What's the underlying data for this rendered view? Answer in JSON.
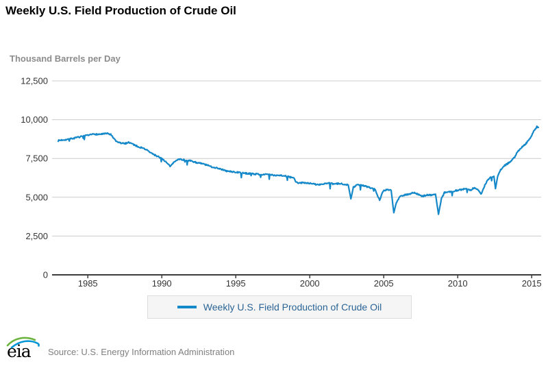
{
  "title": "Weekly U.S. Field Production of Crude Oil",
  "y_axis": {
    "label": "Thousand Barrels per Day",
    "ticks": [
      {
        "value": 12500,
        "label": "12,500"
      },
      {
        "value": 10000,
        "label": "10,000"
      },
      {
        "value": 7500,
        "label": "7,500"
      },
      {
        "value": 5000,
        "label": "5,000"
      },
      {
        "value": 2500,
        "label": "2,500"
      },
      {
        "value": 0,
        "label": "0"
      }
    ]
  },
  "x_axis": {
    "ticks": [
      {
        "value": 1985,
        "label": "1985"
      },
      {
        "value": 1990,
        "label": "1990"
      },
      {
        "value": 1995,
        "label": "1995"
      },
      {
        "value": 2000,
        "label": "2000"
      },
      {
        "value": 2005,
        "label": "2005"
      },
      {
        "value": 2010,
        "label": "2010"
      },
      {
        "value": 2015,
        "label": "2015"
      }
    ]
  },
  "legend": {
    "label": "Weekly U.S. Field Production of Crude Oil"
  },
  "footer": {
    "logo_text": "eia",
    "source": "Source: U.S. Energy Information Administration"
  },
  "colors": {
    "line": "#1488c9",
    "grid": "#cccccc",
    "axis": "#3c3c3c",
    "tick_text": "#333333",
    "legend_text": "#2a6496",
    "logo_green": "#6cb33f",
    "logo_blue": "#0096d6"
  },
  "chart_data": {
    "type": "line",
    "title": "Weekly U.S. Field Production of Crude Oil",
    "ylabel": "Thousand Barrels per Day",
    "xlabel": "",
    "xlim": [
      1982.8,
      2015.8
    ],
    "ylim": [
      0,
      12500
    ],
    "grid": "horizontal",
    "legend_position": "bottom",
    "series": [
      {
        "name": "Weekly U.S. Field Production of Crude Oil",
        "units": "thousand barrels per day",
        "points": [
          [
            1983.0,
            8650
          ],
          [
            1983.3,
            8700
          ],
          [
            1983.6,
            8720
          ],
          [
            1983.9,
            8780
          ],
          [
            1984.2,
            8830
          ],
          [
            1984.5,
            8900
          ],
          [
            1984.8,
            8950
          ],
          [
            1985.1,
            9000
          ],
          [
            1985.4,
            9080
          ],
          [
            1985.7,
            9050
          ],
          [
            1986.0,
            9080
          ],
          [
            1986.3,
            9100
          ],
          [
            1986.55,
            9050
          ],
          [
            1986.7,
            8850
          ],
          [
            1986.9,
            8600
          ],
          [
            1987.2,
            8500
          ],
          [
            1987.5,
            8450
          ],
          [
            1987.75,
            8550
          ],
          [
            1988.0,
            8450
          ],
          [
            1988.3,
            8300
          ],
          [
            1988.6,
            8200
          ],
          [
            1988.9,
            8100
          ],
          [
            1989.2,
            7900
          ],
          [
            1989.45,
            7750
          ],
          [
            1989.7,
            7650
          ],
          [
            1990.0,
            7500
          ],
          [
            1990.2,
            7350
          ],
          [
            1990.45,
            7100
          ],
          [
            1990.6,
            6980
          ],
          [
            1990.8,
            7250
          ],
          [
            1991.0,
            7420
          ],
          [
            1991.3,
            7450
          ],
          [
            1991.6,
            7380
          ],
          [
            1991.9,
            7350
          ],
          [
            1992.2,
            7280
          ],
          [
            1992.5,
            7200
          ],
          [
            1992.8,
            7150
          ],
          [
            1993.1,
            7050
          ],
          [
            1993.4,
            6950
          ],
          [
            1993.7,
            6900
          ],
          [
            1994.0,
            6820
          ],
          [
            1994.3,
            6700
          ],
          [
            1994.6,
            6660
          ],
          [
            1995.0,
            6620
          ],
          [
            1995.3,
            6580
          ],
          [
            1995.6,
            6550
          ],
          [
            1996.0,
            6520
          ],
          [
            1996.3,
            6500
          ],
          [
            1996.6,
            6480
          ],
          [
            1997.0,
            6470
          ],
          [
            1997.3,
            6450
          ],
          [
            1997.6,
            6420
          ],
          [
            1998.0,
            6420
          ],
          [
            1998.3,
            6380
          ],
          [
            1998.6,
            6300
          ],
          [
            1998.9,
            6250
          ],
          [
            1999.05,
            6000
          ],
          [
            1999.3,
            5900
          ],
          [
            1999.6,
            5950
          ],
          [
            2000.0,
            5900
          ],
          [
            2000.3,
            5850
          ],
          [
            2000.6,
            5800
          ],
          [
            2001.0,
            5880
          ],
          [
            2001.3,
            5900
          ],
          [
            2001.6,
            5850
          ],
          [
            2002.0,
            5880
          ],
          [
            2002.3,
            5850
          ],
          [
            2002.6,
            5800
          ],
          [
            2002.78,
            4900
          ],
          [
            2002.95,
            5650
          ],
          [
            2003.2,
            5800
          ],
          [
            2003.5,
            5780
          ],
          [
            2003.8,
            5700
          ],
          [
            2004.1,
            5600
          ],
          [
            2004.4,
            5550
          ],
          [
            2004.72,
            4800
          ],
          [
            2004.95,
            5400
          ],
          [
            2005.2,
            5500
          ],
          [
            2005.5,
            5450
          ],
          [
            2005.68,
            4000
          ],
          [
            2005.85,
            4650
          ],
          [
            2006.1,
            5050
          ],
          [
            2006.4,
            5150
          ],
          [
            2006.7,
            5200
          ],
          [
            2007.0,
            5300
          ],
          [
            2007.3,
            5200
          ],
          [
            2007.6,
            5050
          ],
          [
            2007.9,
            5150
          ],
          [
            2008.2,
            5150
          ],
          [
            2008.5,
            5200
          ],
          [
            2008.7,
            3900
          ],
          [
            2008.9,
            4900
          ],
          [
            2009.1,
            5300
          ],
          [
            2009.4,
            5350
          ],
          [
            2009.7,
            5400
          ],
          [
            2010.0,
            5450
          ],
          [
            2010.3,
            5500
          ],
          [
            2010.6,
            5550
          ],
          [
            2010.85,
            5450
          ],
          [
            2011.1,
            5600
          ],
          [
            2011.35,
            5500
          ],
          [
            2011.6,
            5200
          ],
          [
            2011.8,
            5700
          ],
          [
            2012.0,
            6100
          ],
          [
            2012.25,
            6300
          ],
          [
            2012.45,
            6350
          ],
          [
            2012.55,
            5550
          ],
          [
            2012.7,
            6350
          ],
          [
            2012.9,
            6750
          ],
          [
            2013.1,
            7000
          ],
          [
            2013.35,
            7150
          ],
          [
            2013.6,
            7350
          ],
          [
            2013.85,
            7600
          ],
          [
            2014.1,
            8000
          ],
          [
            2014.35,
            8250
          ],
          [
            2014.6,
            8450
          ],
          [
            2014.85,
            8750
          ],
          [
            2015.05,
            9100
          ],
          [
            2015.2,
            9350
          ],
          [
            2015.35,
            9550
          ],
          [
            2015.45,
            9500
          ]
        ]
      }
    ]
  }
}
